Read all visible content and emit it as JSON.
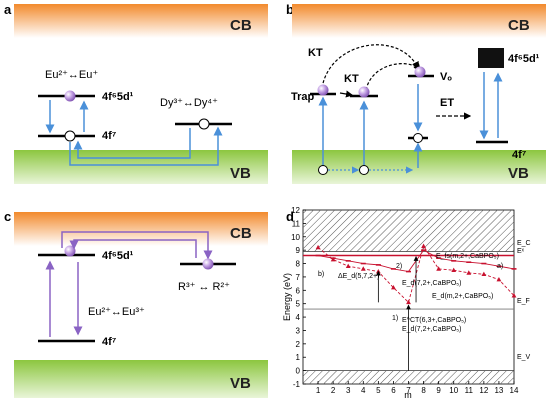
{
  "panel_a": {
    "label": "a",
    "cb": "CB",
    "vb": "VB",
    "eu_pair": "Eu²⁺↔Eu⁺",
    "dy_pair": "Dy³⁺↔Dy⁴⁺",
    "level_5d": "4f⁶5d¹",
    "level_4f": "4f⁷"
  },
  "panel_b": {
    "label": "b",
    "cb": "CB",
    "vb": "VB",
    "kt1": "KT",
    "kt2": "KT",
    "trap": "Trap",
    "vo": "Vₒ",
    "et": "ET",
    "level_5d": "4f⁶5d¹",
    "level_4f": "4f⁷"
  },
  "panel_c": {
    "label": "c",
    "cb": "CB",
    "vb": "VB",
    "level_5d": "4f⁶5d¹",
    "level_4f": "4f⁷",
    "r_pair": "R³⁺ ↔ R²⁺",
    "eu_pair": "Eu²⁺↔Eu³⁺"
  },
  "panel_d": {
    "label": "d",
    "ylabel": "Energy (eV)",
    "xlabel": "m",
    "ec": "E_C",
    "ex": "Eˣ",
    "ef": "E_F",
    "ev": "E_V",
    "ann_efs": "E_fs(m,2+,CaBPO₅)",
    "ann_ed7": "E_d(7,2+,CaBPO₅)",
    "ann_ed": "E_d(m,2+,CaBPO₅)",
    "ann_delta": "ΔE_d(5,7,2+)",
    "ann_ect": "E^CT(6,3+,CaBPO₅)",
    "ann_ed72": "E_d(7,2+,CaBPO₅)",
    "ann_a": "a)",
    "ann_b": "b)",
    "ann_1": "1)",
    "ann_2": "2)",
    "colors": {
      "red": "#c8102e",
      "hatch": "#666666"
    }
  },
  "chart_data": {
    "type": "line",
    "xlabel": "m",
    "ylabel": "Energy (eV)",
    "xlim": [
      0,
      14
    ],
    "ylim": [
      -1,
      12
    ],
    "x_ticks": [
      1,
      2,
      3,
      4,
      5,
      6,
      7,
      8,
      9,
      10,
      11,
      12,
      13,
      14
    ],
    "y_ticks": [
      -1,
      0,
      1,
      2,
      3,
      4,
      5,
      6,
      7,
      8,
      9,
      10,
      11,
      12
    ],
    "reference_levels": {
      "E_C": 8.9,
      "E_X": 8.6,
      "E_F": 4.6,
      "E_V": 0
    },
    "series": [
      {
        "name": "a)",
        "x": [
          1,
          2,
          3,
          4,
          5,
          6,
          7,
          8,
          9,
          10,
          11,
          12,
          13,
          14
        ],
        "values": [
          9.2,
          8.3,
          7.8,
          7.6,
          7.4,
          6.2,
          5.1,
          9.3,
          7.6,
          7.5,
          7.3,
          7.2,
          6.8,
          5.6
        ]
      },
      {
        "name": "b)",
        "x": [
          1,
          2,
          3,
          4,
          5,
          6,
          7,
          8,
          9,
          10,
          11,
          12,
          13,
          14
        ],
        "values": [
          8.6,
          8.4,
          8.2,
          8.0,
          7.9,
          7.6,
          7.4,
          9.0,
          8.4,
          8.2,
          8.1,
          8.0,
          7.8,
          7.6
        ]
      }
    ]
  }
}
